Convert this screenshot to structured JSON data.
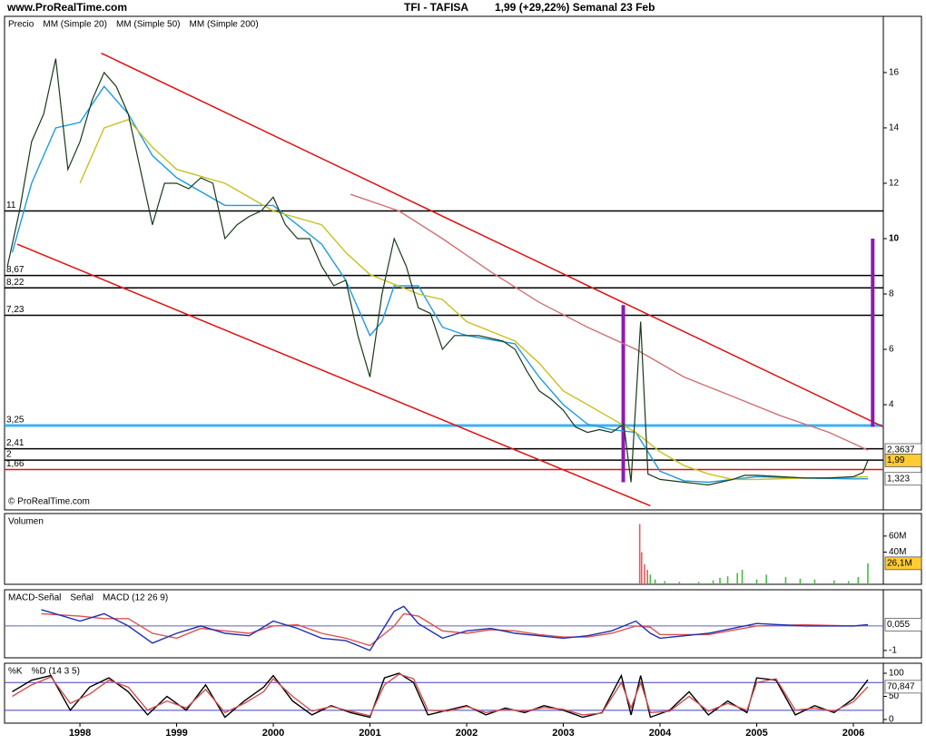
{
  "chart_data": [
    {
      "type": "line",
      "title": "TFI - TAFISA",
      "subtitle": "1,99 (+29,22%)   Semanal  23 Feb",
      "source": "www.ProRealTime.com",
      "copyright": "© ProRealTime.com",
      "label": "Precio",
      "xlim": [
        1997.22,
        2006.31
      ],
      "ylim": [
        0.2,
        18.03
      ],
      "yticks": [
        4,
        6,
        8,
        10,
        12,
        14,
        16
      ],
      "series": [
        {
          "name": "MM (Simple 20)",
          "color": "#1e9be0",
          "x": [
            1997.3,
            1997.5,
            1997.75,
            1998.0,
            1998.25,
            1998.5,
            1998.75,
            1999.0,
            1999.5,
            2000.0,
            2000.5,
            2000.75,
            2001.0,
            2001.125,
            2001.25,
            2001.5,
            2001.75,
            2002.0,
            2002.5,
            2002.75,
            2003.0,
            2003.25,
            2003.5,
            2003.75,
            2004.0,
            2004.25,
            2004.5,
            2004.75,
            2005.0,
            2005.5,
            2006.0,
            2006.15
          ],
          "values": [
            9.5,
            12,
            14,
            14.2,
            15.5,
            14.5,
            13,
            12.2,
            11.2,
            11.2,
            9.8,
            8.5,
            6.5,
            7,
            8.3,
            8.3,
            6.8,
            6.5,
            6.2,
            5,
            4,
            3.3,
            3.1,
            3,
            1.6,
            1.25,
            1.2,
            1.3,
            1.4,
            1.35,
            1.32,
            1.323
          ]
        },
        {
          "name": "MM (Simple 50)",
          "color": "#c8c020",
          "x": [
            1998.0,
            1998.25,
            1998.5,
            1998.75,
            1999.0,
            1999.5,
            2000.0,
            2000.5,
            2000.75,
            2001.0,
            2001.5,
            2001.75,
            2002.0,
            2002.5,
            2002.75,
            2003.0,
            2003.5,
            2003.75,
            2004.0,
            2004.25,
            2004.5,
            2004.75,
            2005.0,
            2005.5,
            2006.0,
            2006.15
          ],
          "values": [
            12,
            14,
            14.3,
            13.3,
            12.5,
            12,
            11,
            10.5,
            9.5,
            8.7,
            8,
            7.8,
            7,
            6.3,
            5.5,
            4.5,
            3.5,
            3,
            2.3,
            1.8,
            1.5,
            1.3,
            1.3,
            1.35,
            1.38,
            1.4
          ]
        },
        {
          "name": "MM (Simple 200)",
          "color": "#d07070",
          "x": [
            2000.8,
            2001.3,
            2001.75,
            2002.25,
            2002.75,
            2003.25,
            2003.75,
            2004.25,
            2004.75,
            2005.25,
            2005.75,
            2006.15
          ],
          "values": [
            11.6,
            11,
            10,
            8.8,
            7.7,
            6.8,
            6,
            5,
            4.3,
            3.6,
            3,
            2.36
          ]
        },
        {
          "name": "Precio",
          "color": "#1a3a1a",
          "x": [
            1997.25,
            1997.375,
            1997.5,
            1997.625,
            1997.75,
            1997.875,
            1998.0,
            1998.125,
            1998.25,
            1998.375,
            1998.5,
            1998.625,
            1998.75,
            1998.875,
            1999.0,
            1999.125,
            1999.25,
            1999.375,
            1999.5,
            1999.625,
            1999.75,
            1999.875,
            2000.0,
            2000.125,
            2000.25,
            2000.375,
            2000.5,
            2000.625,
            2000.75,
            2000.875,
            2001.0,
            2001.125,
            2001.25,
            2001.375,
            2001.5,
            2001.625,
            2001.75,
            2001.875,
            2002.0,
            2002.125,
            2002.25,
            2002.375,
            2002.5,
            2002.625,
            2002.75,
            2002.875,
            2003.0,
            2003.125,
            2003.25,
            2003.375,
            2003.5,
            2003.625,
            2003.7,
            2003.8,
            2003.875,
            2004.0,
            2004.25,
            2004.5,
            2004.75,
            2004.875,
            2005.0,
            2005.25,
            2005.5,
            2005.75,
            2006.0,
            2006.1,
            2006.15
          ],
          "values": [
            9,
            11,
            13.5,
            14.5,
            16.5,
            12.5,
            13.5,
            15,
            16,
            15.5,
            14.5,
            12.5,
            10.5,
            12,
            12,
            11.8,
            12.2,
            12,
            10,
            10.5,
            10.8,
            11,
            11.5,
            10.5,
            10,
            10,
            9,
            8.3,
            8.5,
            6.5,
            5,
            8,
            10,
            9,
            7.5,
            7.3,
            6,
            6.5,
            6.5,
            6.5,
            6.4,
            6.3,
            6,
            5.2,
            4.5,
            4.2,
            3.8,
            3.2,
            3,
            3.1,
            3,
            3.3,
            1.2,
            7,
            1.5,
            1.3,
            1.2,
            1.1,
            1.3,
            1.45,
            1.45,
            1.4,
            1.35,
            1.35,
            1.4,
            1.55,
            1.99
          ]
        }
      ],
      "levels": [
        {
          "value": 11,
          "label": "11",
          "color": "#000000"
        },
        {
          "value": 8.67,
          "label": "8,67",
          "color": "#000000"
        },
        {
          "value": 8.22,
          "label": "8,22",
          "color": "#000000"
        },
        {
          "value": 7.23,
          "label": "7,23",
          "color": "#000000"
        },
        {
          "value": 3.25,
          "label": "3,25",
          "color": "#40b0f0"
        },
        {
          "value": 2.41,
          "label": "2,41",
          "color": "#000000"
        },
        {
          "value": 2,
          "label": "2",
          "color": "#000000"
        },
        {
          "value": 1.66,
          "label": "1,66",
          "color": "#e01010"
        }
      ],
      "trend_lines": [
        {
          "x": [
            1998.22,
            2006.31
          ],
          "values": [
            16.7,
            3.2
          ],
          "color": "#e01010"
        },
        {
          "x": [
            1997.35,
            2003.9
          ],
          "values": [
            9.8,
            0.35
          ],
          "color": "#e01010"
        },
        {
          "x": [
            2003.62,
            2003.62
          ],
          "values": [
            1.2,
            7.6
          ],
          "color": "#8a1cb0"
        },
        {
          "x": [
            2006.2,
            2006.2
          ],
          "values": [
            3.2,
            10
          ],
          "color": "#8a1cb0"
        }
      ],
      "price_tags": [
        {
          "value": 2.3637,
          "label": "2,3637",
          "color": "#d07070",
          "bg": "#ffffff"
        },
        {
          "value": 1.99,
          "label": "1,99",
          "color": "#000000",
          "bg": "#ffcc33"
        },
        {
          "value": 1.323,
          "label": "1,323",
          "color": "#1e9be0",
          "bg": "#ffffff"
        }
      ]
    },
    {
      "type": "bar",
      "label": "Volumen",
      "color": "#40c040",
      "xlim": [
        1997.22,
        2006.31
      ],
      "ylim": [
        0,
        88
      ],
      "yticks": [
        {
          "value": 40,
          "label": "40M"
        },
        {
          "value": 60,
          "label": "60M"
        }
      ],
      "x": [
        2003.79,
        2003.81,
        2003.84,
        2003.87,
        2003.9,
        2003.95,
        2004.05,
        2004.2,
        2004.4,
        2004.55,
        2004.62,
        2004.7,
        2004.8,
        2004.85,
        2005.0,
        2005.1,
        2005.3,
        2005.45,
        2005.6,
        2005.8,
        2005.95,
        2006.05,
        2006.15
      ],
      "values": [
        75,
        40,
        25,
        18,
        12,
        6,
        4,
        3,
        3,
        5,
        8,
        10,
        14,
        18,
        6,
        12,
        9,
        7,
        6,
        5,
        4,
        9,
        26.1
      ],
      "price_tags": [
        {
          "value": 26.1,
          "label": "26,1M",
          "color": "#000000",
          "bg": "#ffcc33"
        }
      ]
    },
    {
      "type": "line",
      "label": "MACD-Señal",
      "xlim": [
        1997.22,
        2006.31
      ],
      "ylim": [
        -1.3,
        1.48
      ],
      "yticks": [
        -1
      ],
      "levels": [
        {
          "value": 0,
          "label": "",
          "color": "#6060c0"
        }
      ],
      "series": [
        {
          "name": "Señal",
          "color": "#e05050",
          "x": [
            1997.6,
            1998.0,
            1998.25,
            1998.5,
            1998.75,
            1999.0,
            1999.25,
            1999.5,
            1999.75,
            2000.0,
            2000.25,
            2000.5,
            2000.75,
            2001.0,
            2001.25,
            2001.35,
            2001.5,
            2001.75,
            2002.0,
            2002.25,
            2002.5,
            2002.75,
            2003.0,
            2003.25,
            2003.5,
            2003.75,
            2003.9,
            2004.0,
            2004.5,
            2005.0,
            2005.5,
            2006.0,
            2006.15
          ],
          "values": [
            0.5,
            0.4,
            0.3,
            0.3,
            -0.3,
            -0.5,
            -0.1,
            -0.2,
            -0.3,
            0.0,
            0.05,
            -0.3,
            -0.5,
            -0.8,
            0.0,
            0.5,
            0.4,
            -0.2,
            -0.3,
            -0.15,
            -0.2,
            -0.35,
            -0.45,
            -0.45,
            -0.3,
            0.0,
            -0.05,
            -0.35,
            -0.35,
            0.0,
            0.05,
            0.0,
            0.03
          ]
        },
        {
          "name": "MACD (12 26 9)",
          "color": "#2030b0",
          "x": [
            1997.6,
            1998.0,
            1998.25,
            1998.5,
            1998.75,
            1999.0,
            1999.25,
            1999.5,
            1999.75,
            2000.0,
            2000.25,
            2000.5,
            2000.75,
            2001.0,
            2001.25,
            2001.35,
            2001.5,
            2001.75,
            2002.0,
            2002.25,
            2002.5,
            2002.75,
            2003.0,
            2003.25,
            2003.5,
            2003.75,
            2003.9,
            2004.0,
            2004.5,
            2005.0,
            2005.5,
            2006.0,
            2006.15
          ],
          "values": [
            0.67,
            0.2,
            0.5,
            0.0,
            -0.7,
            -0.3,
            0.0,
            -0.3,
            -0.4,
            0.2,
            -0.1,
            -0.5,
            -0.6,
            -1.0,
            0.6,
            0.8,
            0.1,
            -0.5,
            -0.2,
            -0.1,
            -0.3,
            -0.4,
            -0.5,
            -0.4,
            -0.2,
            0.2,
            -0.3,
            -0.5,
            -0.3,
            0.1,
            0.0,
            0.0,
            0.055
          ]
        }
      ],
      "price_tags": [
        {
          "value": 0.055,
          "label": "0,055",
          "color": "#2030b0",
          "bg": "#ffffff"
        }
      ]
    },
    {
      "type": "line",
      "xlim": [
        1997.22,
        2006.31
      ],
      "ylim": [
        -7.8,
        121.6
      ],
      "yticks": [
        0,
        50,
        100
      ],
      "xticks": [
        1998,
        1999,
        2000,
        2001,
        2002,
        2003,
        2004,
        2005,
        2006
      ],
      "levels": [
        {
          "value": 80,
          "label": "",
          "color": "#4040c0"
        },
        {
          "value": 20,
          "label": "",
          "color": "#4040c0"
        }
      ],
      "series": [
        {
          "name": "%K",
          "color": "#000000",
          "x": [
            1997.3,
            1997.5,
            1997.7,
            1997.9,
            1998.1,
            1998.3,
            1998.5,
            1998.7,
            1998.9,
            1999.1,
            1999.3,
            1999.5,
            1999.7,
            1999.9,
            2000.0,
            2000.2,
            2000.4,
            2000.6,
            2000.8,
            2001.0,
            2001.15,
            2001.3,
            2001.45,
            2001.6,
            2001.8,
            2002.0,
            2002.2,
            2002.4,
            2002.6,
            2002.8,
            2003.0,
            2003.2,
            2003.4,
            2003.6,
            2003.7,
            2003.8,
            2003.9,
            2004.1,
            2004.3,
            2004.5,
            2004.7,
            2004.9,
            2005.0,
            2005.2,
            2005.4,
            2005.6,
            2005.8,
            2006.0,
            2006.15
          ],
          "values": [
            60,
            85,
            95,
            20,
            70,
            90,
            60,
            10,
            50,
            20,
            75,
            5,
            40,
            70,
            95,
            40,
            10,
            30,
            15,
            5,
            90,
            100,
            80,
            10,
            20,
            30,
            10,
            25,
            15,
            30,
            20,
            5,
            15,
            95,
            10,
            95,
            5,
            20,
            60,
            10,
            40,
            15,
            90,
            85,
            10,
            30,
            15,
            45,
            86
          ]
        },
        {
          "name": "%D (14 3 5)",
          "color": "#d05050",
          "x": [
            1997.3,
            1997.5,
            1997.7,
            1997.9,
            1998.1,
            1998.3,
            1998.5,
            1998.7,
            1998.9,
            1999.1,
            1999.3,
            1999.5,
            1999.7,
            1999.9,
            2000.0,
            2000.2,
            2000.4,
            2000.6,
            2000.8,
            2001.0,
            2001.15,
            2001.3,
            2001.45,
            2001.6,
            2001.8,
            2002.0,
            2002.2,
            2002.4,
            2002.6,
            2002.8,
            2003.0,
            2003.2,
            2003.4,
            2003.6,
            2003.7,
            2003.8,
            2003.9,
            2004.1,
            2004.3,
            2004.5,
            2004.7,
            2004.9,
            2005.0,
            2005.2,
            2005.4,
            2005.6,
            2005.8,
            2006.0,
            2006.15
          ],
          "values": [
            50,
            75,
            92,
            35,
            55,
            85,
            70,
            20,
            40,
            25,
            65,
            15,
            35,
            60,
            88,
            50,
            18,
            28,
            18,
            8,
            75,
            98,
            88,
            20,
            18,
            28,
            15,
            22,
            18,
            26,
            22,
            10,
            14,
            80,
            25,
            80,
            15,
            18,
            50,
            18,
            35,
            20,
            80,
            88,
            20,
            25,
            18,
            38,
            70.847
          ]
        }
      ],
      "price_tags": [
        {
          "value": 70.847,
          "label": "70,847",
          "color": "#d05050",
          "bg": "#ffffff"
        }
      ]
    }
  ]
}
